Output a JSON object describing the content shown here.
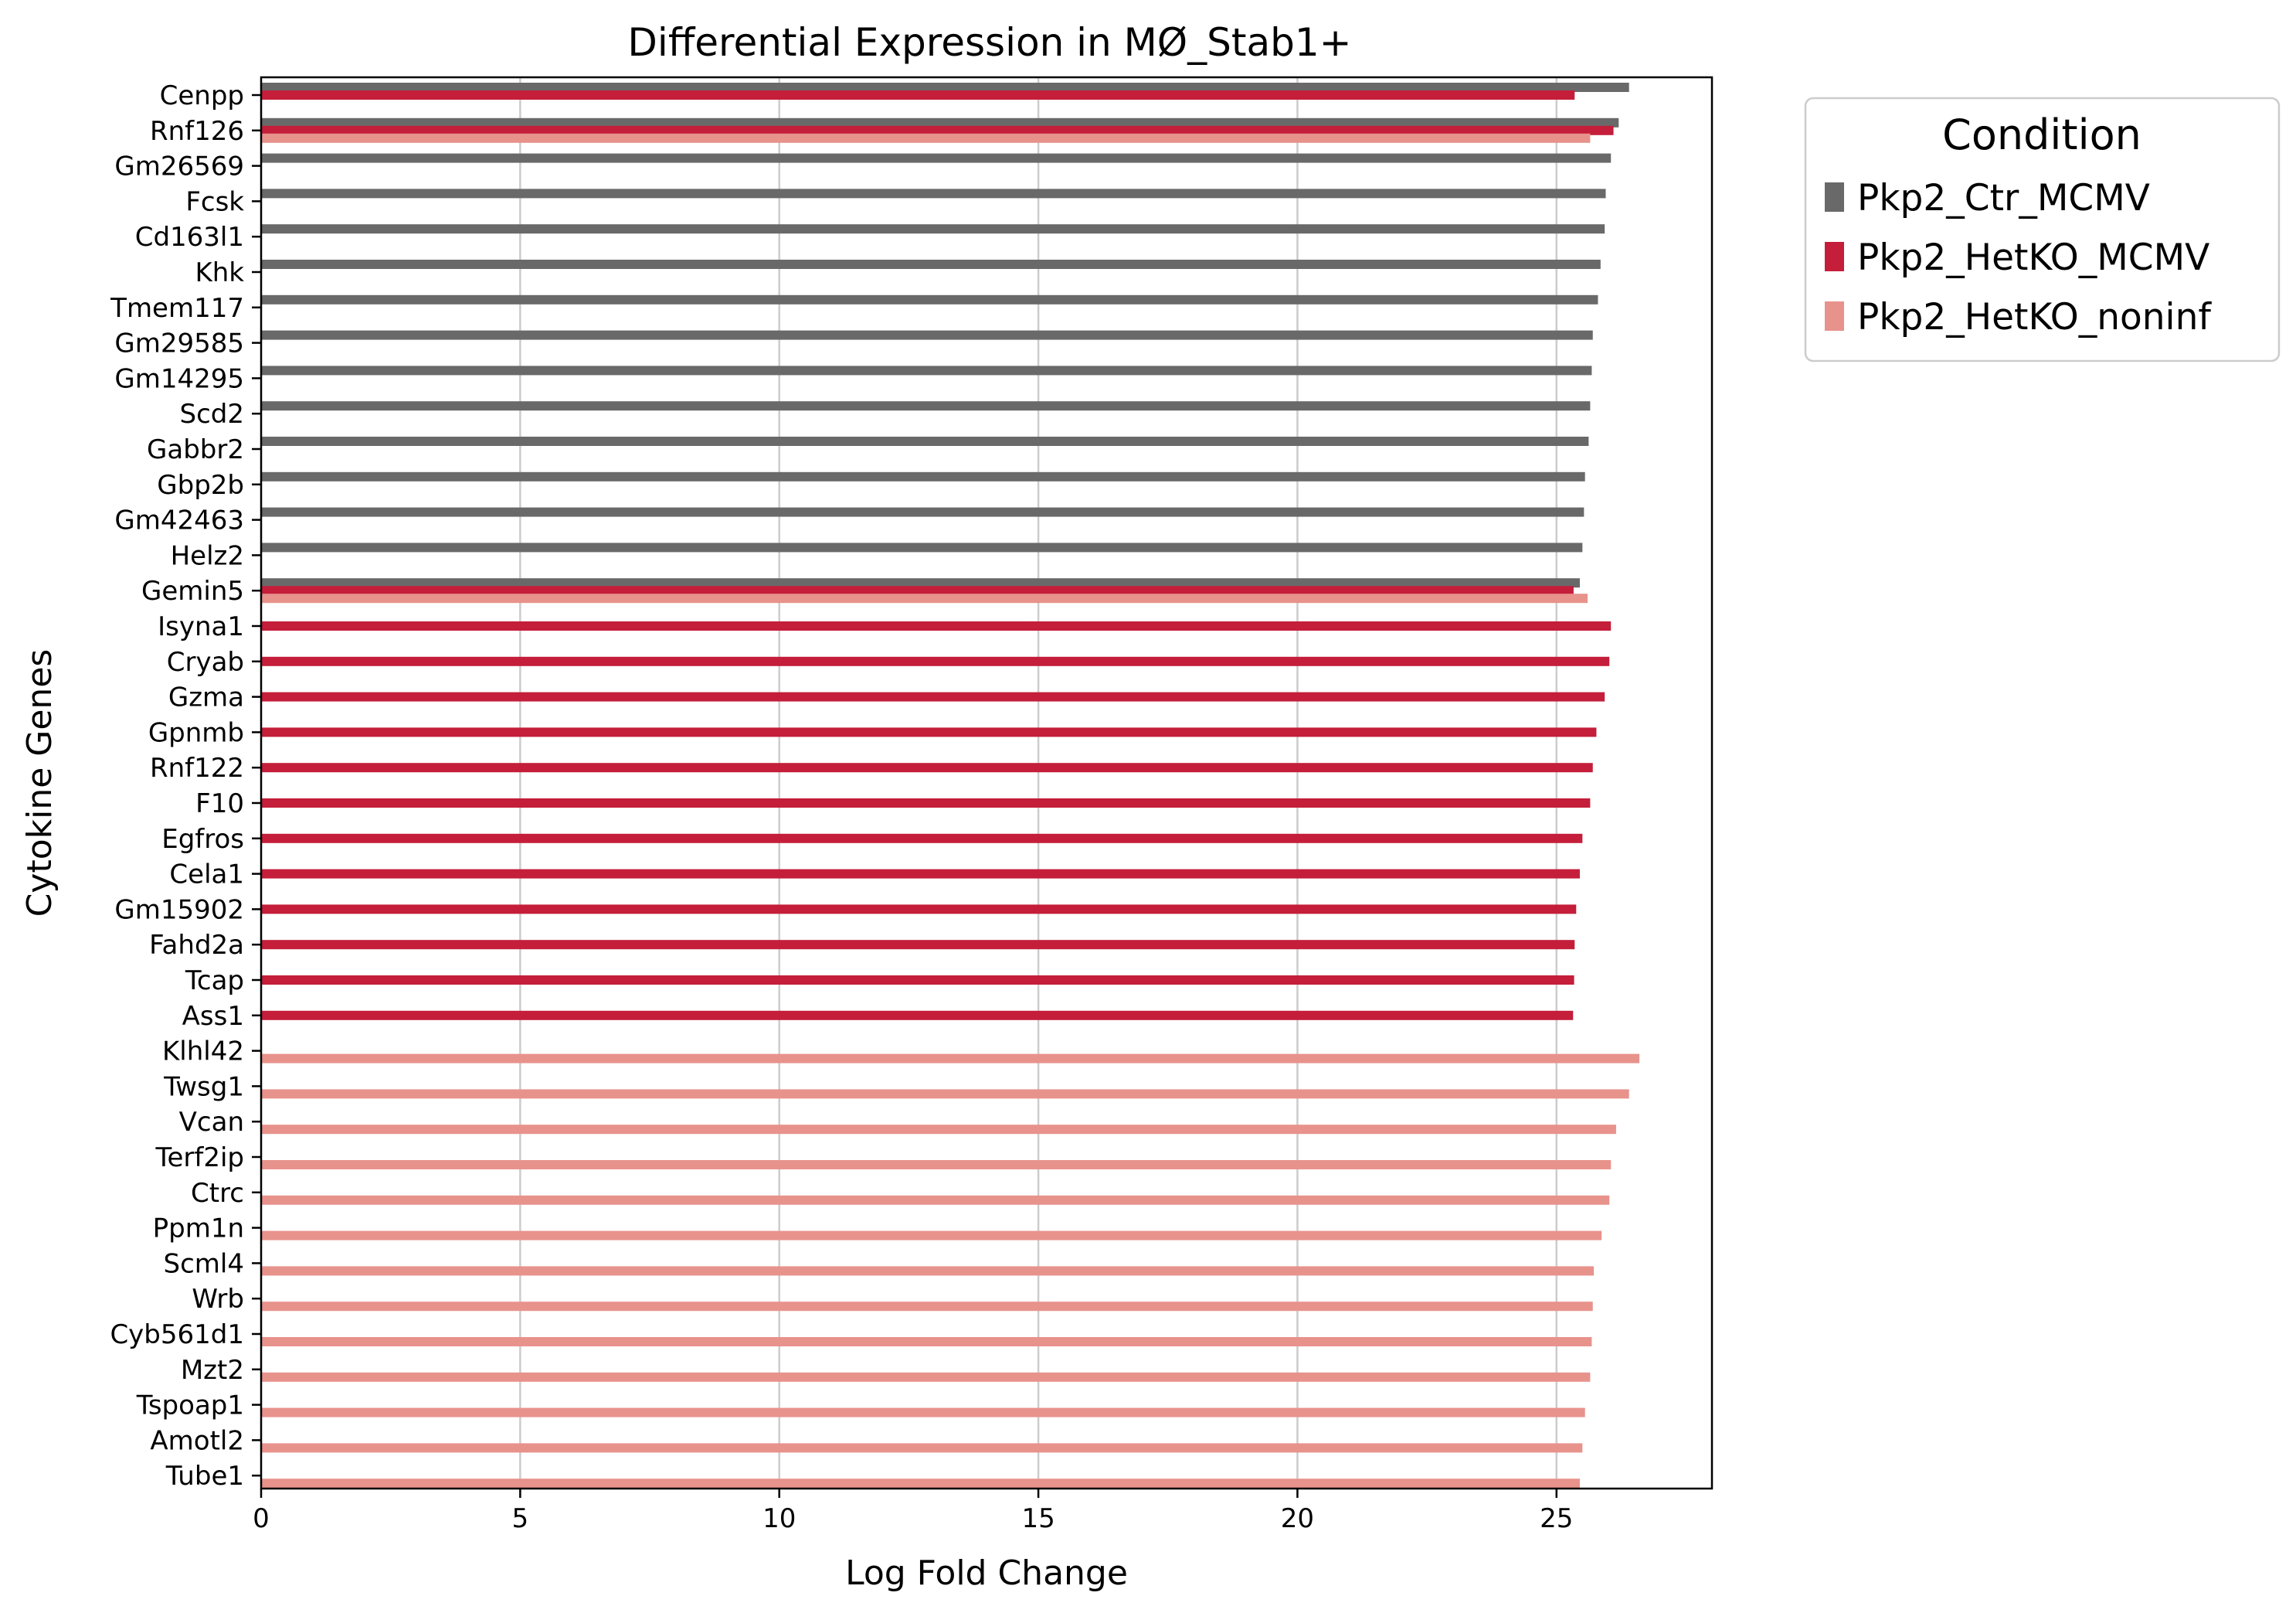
{
  "chart_data": {
    "type": "bar",
    "orientation": "horizontal",
    "title": "Differential Expression in MØ_Stab1+",
    "xlabel": "Log Fold Change",
    "ylabel": "Cytokine Genes",
    "xlim": [
      0,
      28
    ],
    "xticks": [
      "0",
      "5",
      "10",
      "15",
      "20",
      "25"
    ],
    "grid": "x",
    "legend_title": "Condition",
    "legend_placement": "outside-top-right",
    "categories": [
      "Cenpp",
      "Rnf126",
      "Gm26569",
      "Fcsk",
      "Cd163l1",
      "Khk",
      "Tmem117",
      "Gm29585",
      "Gm14295",
      "Scd2",
      "Gabbr2",
      "Gbp2b",
      "Gm42463",
      "Helz2",
      "Gemin5",
      "Isyna1",
      "Cryab",
      "Gzma",
      "Gpnmb",
      "Rnf122",
      "F10",
      "Egfros",
      "Cela1",
      "Gm15902",
      "Fahd2a",
      "Tcap",
      "Ass1",
      "Klhl42",
      "Twsg1",
      "Vcan",
      "Terf2ip",
      "Ctrc",
      "Ppm1n",
      "Scml4",
      "Wrb",
      "Cyb561d1",
      "Mzt2",
      "Tspoap1",
      "Amotl2",
      "Tube1"
    ],
    "series": [
      {
        "name": "Pkp2_Ctr_MCMV",
        "color": "#696969",
        "values": [
          26.4,
          26.2,
          26.05,
          25.95,
          25.93,
          25.85,
          25.8,
          25.7,
          25.68,
          25.65,
          25.62,
          25.55,
          25.53,
          25.5,
          25.45,
          null,
          null,
          null,
          null,
          null,
          null,
          null,
          null,
          null,
          null,
          null,
          null,
          null,
          null,
          null,
          null,
          null,
          null,
          null,
          null,
          null,
          null,
          null,
          null,
          null
        ]
      },
      {
        "name": "Pkp2_HetKO_MCMV",
        "color": "#c41e3a",
        "values": [
          25.35,
          26.1,
          null,
          null,
          null,
          null,
          null,
          null,
          null,
          null,
          null,
          null,
          null,
          null,
          25.33,
          26.05,
          26.02,
          25.93,
          25.77,
          25.7,
          25.65,
          25.5,
          25.45,
          25.38,
          25.35,
          25.34,
          25.32,
          null,
          null,
          null,
          null,
          null,
          null,
          null,
          null,
          null,
          null,
          null,
          null,
          null
        ]
      },
      {
        "name": "Pkp2_HetKO_noninf",
        "color": "#e8928c",
        "values": [
          null,
          25.65,
          null,
          null,
          null,
          null,
          null,
          null,
          null,
          null,
          null,
          null,
          null,
          null,
          25.6,
          null,
          null,
          null,
          null,
          null,
          null,
          null,
          null,
          null,
          null,
          null,
          null,
          26.6,
          26.4,
          26.15,
          26.05,
          26.02,
          25.87,
          25.72,
          25.7,
          25.68,
          25.65,
          25.55,
          25.5,
          25.45
        ]
      }
    ]
  }
}
